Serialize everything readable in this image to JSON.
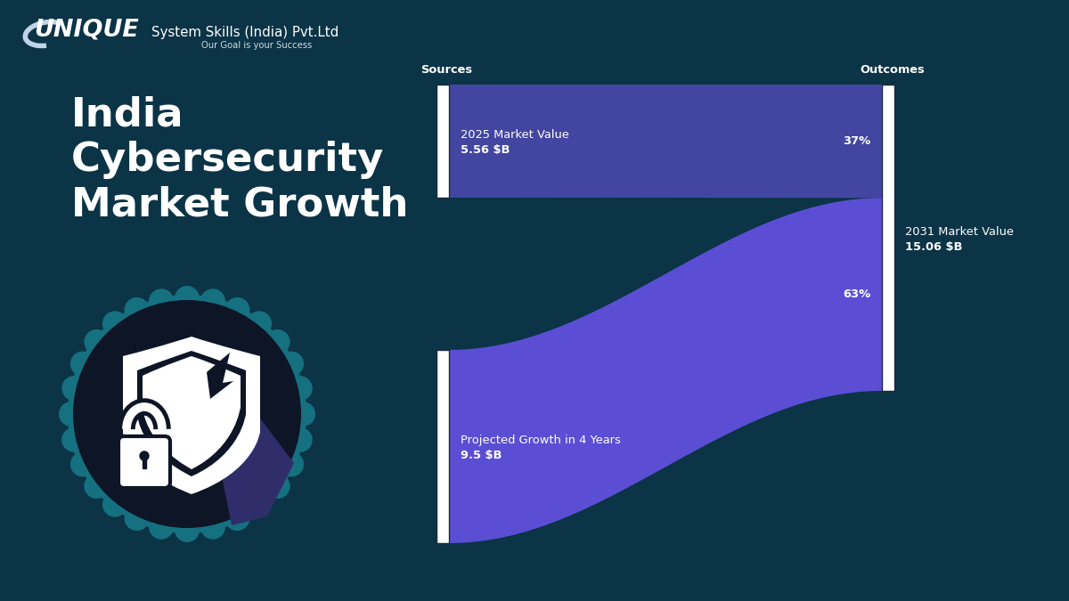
{
  "header": {
    "brand": "UNIQUE",
    "company": "System Skills (India) Pvt.Ltd",
    "tagline": "Our Goal is your Success"
  },
  "chart_data": {
    "type": "sankey",
    "title": "India\nCybersecurity\nMarket Growth",
    "source_heading": "Sources",
    "outcome_heading": "Outcomes",
    "sources": [
      {
        "name": "2025 Market Value",
        "value": 5.56,
        "value_label": "5.56 $B",
        "share": 37,
        "share_label": "37%",
        "color": "#4246a0"
      },
      {
        "name": "Projected Growth in 4 Years",
        "value": 9.5,
        "value_label": "9.5 $B",
        "share": 63,
        "share_label": "63%",
        "color": "#5b4ed4"
      }
    ],
    "outcome": {
      "name": "2031 Market Value",
      "value": 15.06,
      "value_label": "15.06 $B"
    }
  }
}
